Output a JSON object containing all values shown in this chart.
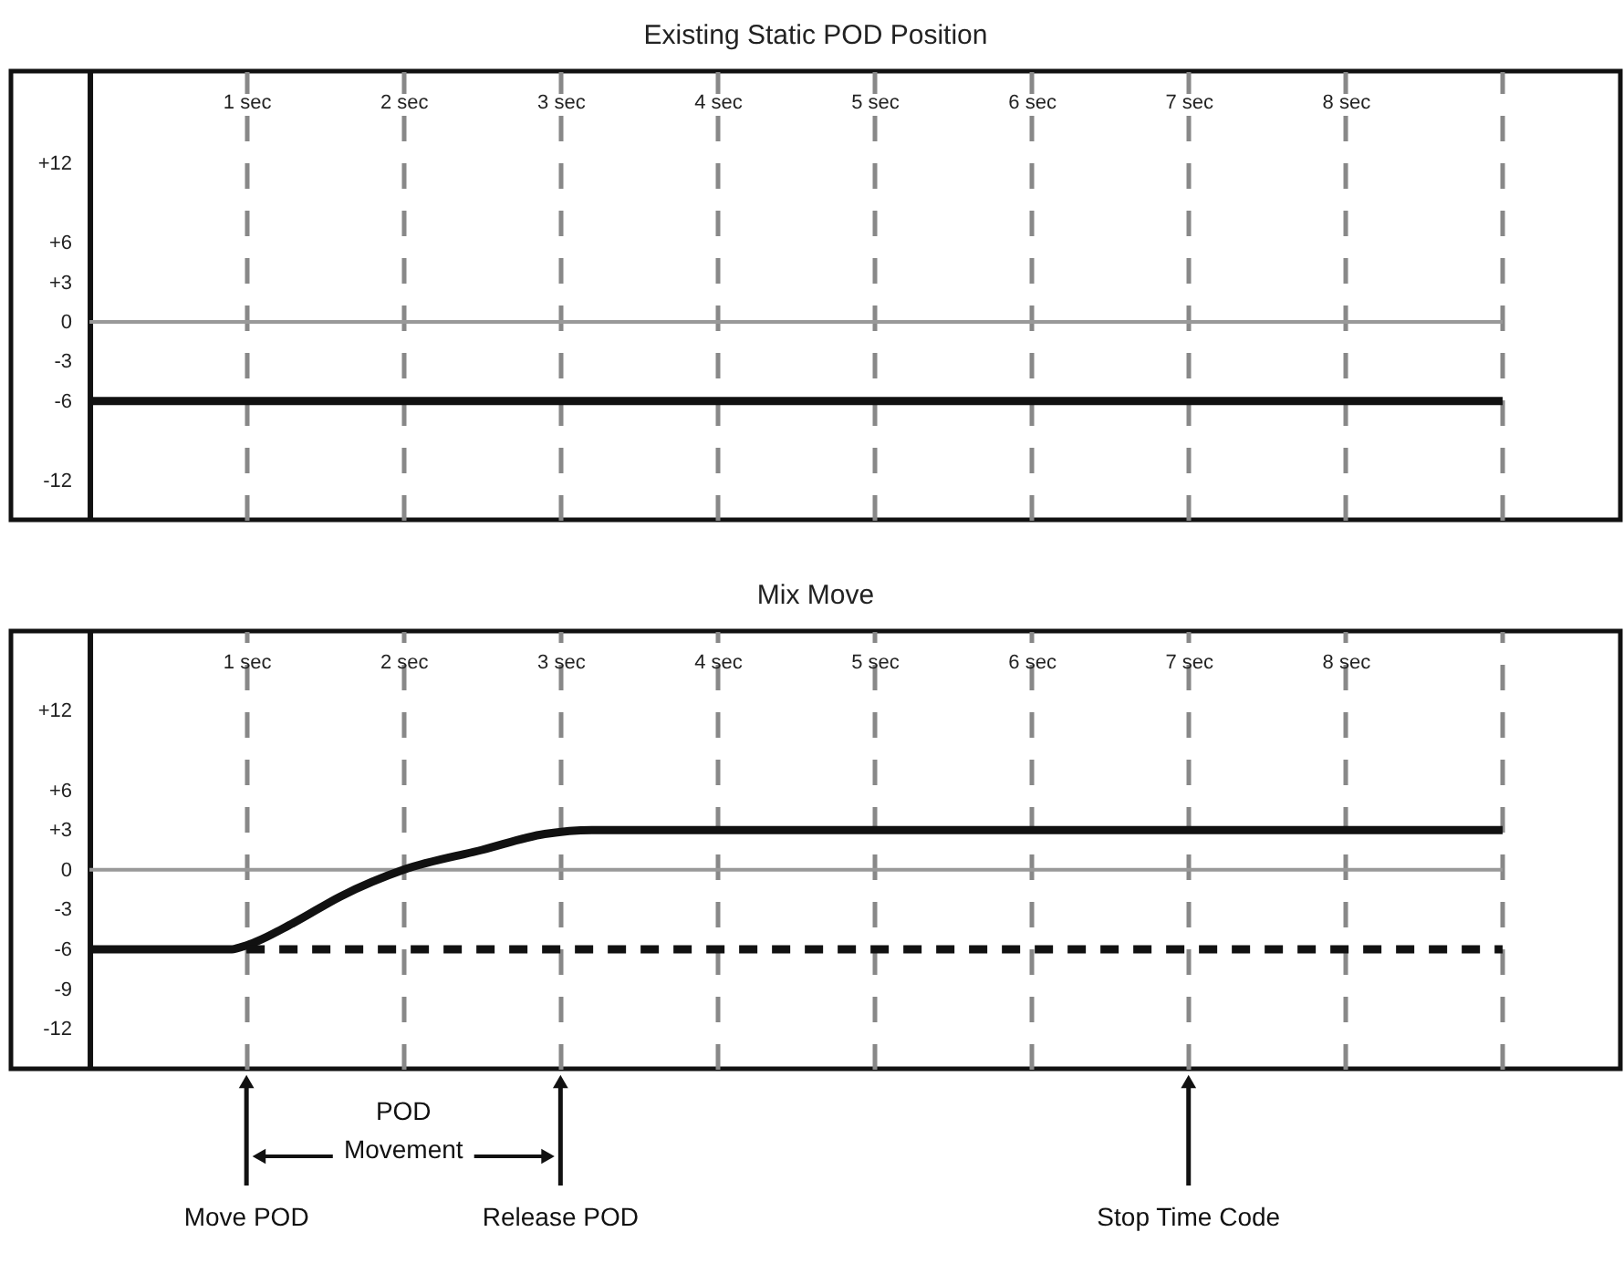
{
  "chart_data": [
    {
      "type": "line",
      "title": "Existing Static POD Position",
      "series": [
        {
          "color": "#111111",
          "line_style": "solid",
          "x": [
            0,
            9
          ],
          "values": [
            -6,
            -6
          ]
        }
      ],
      "xlim": [
        -0.5,
        9.75
      ],
      "ylim": [
        -15,
        19
      ],
      "xticks": [
        {
          "value": 1,
          "label": "1 sec"
        },
        {
          "value": 2,
          "label": "2 sec"
        },
        {
          "value": 3,
          "label": "3 sec"
        },
        {
          "value": 4,
          "label": "4 sec"
        },
        {
          "value": 5,
          "label": "5 sec"
        },
        {
          "value": 6,
          "label": "6 sec"
        },
        {
          "value": 7,
          "label": "7 sec"
        },
        {
          "value": 8,
          "label": "8 sec"
        },
        {
          "value": 9,
          "label": null
        }
      ],
      "yticks": [
        {
          "value": 12,
          "label": "+12"
        },
        {
          "value": 6,
          "label": "+6"
        },
        {
          "value": 3,
          "label": "+3"
        },
        0,
        -3,
        -6,
        -12
      ],
      "ref_lines": [
        {
          "axis": "y",
          "value": 0,
          "color": "#999999"
        }
      ],
      "grid": "x",
      "marker": "none"
    },
    {
      "type": "line",
      "title": "Mix Move",
      "series": [
        {
          "color": "#111111",
          "line_style": "solid",
          "x": [
            0,
            0.9,
            1,
            1.3,
            1.6,
            2,
            2.5,
            2.9,
            3.2,
            9
          ],
          "values": [
            -6,
            -6,
            -5.7,
            -4,
            -2,
            0,
            1.5,
            2.7,
            3,
            3
          ]
        },
        {
          "color": "#111111",
          "line_style": "dashed",
          "x": [
            1,
            9
          ],
          "values": [
            -6,
            -6
          ]
        }
      ],
      "xlim": [
        -0.5,
        9.75
      ],
      "ylim": [
        -15,
        18
      ],
      "xticks": [
        {
          "value": 1,
          "label": "1 sec"
        },
        {
          "value": 2,
          "label": "2 sec"
        },
        {
          "value": 3,
          "label": "3 sec"
        },
        {
          "value": 4,
          "label": "4 sec"
        },
        {
          "value": 5,
          "label": "5 sec"
        },
        {
          "value": 6,
          "label": "6 sec"
        },
        {
          "value": 7,
          "label": "7 sec"
        },
        {
          "value": 8,
          "label": "8 sec"
        },
        {
          "value": 9,
          "label": null
        }
      ],
      "yticks": [
        {
          "value": 12,
          "label": "+12"
        },
        {
          "value": 6,
          "label": "+6"
        },
        {
          "value": 3,
          "label": "+3"
        },
        0,
        -3,
        -6,
        -9,
        -12
      ],
      "ref_lines": [
        {
          "axis": "y",
          "value": 0,
          "color": "#999999"
        },
        {
          "axis": "x",
          "value": 1,
          "label": "Move POD",
          "color": "#111111"
        },
        {
          "axis": "x",
          "value": 3,
          "label": "Release POD",
          "color": "#111111"
        },
        {
          "axis": "x",
          "value": 7,
          "label": "Stop Time Code",
          "color": "#111111"
        }
      ],
      "annotations": [
        "POD Movement"
      ],
      "grid": "x",
      "marker": "none"
    }
  ]
}
